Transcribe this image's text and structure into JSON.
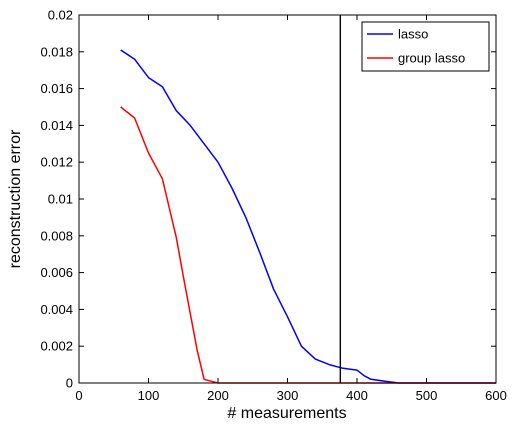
{
  "chart_data": {
    "type": "line",
    "xlabel": "# measurements",
    "ylabel": "reconstruction error",
    "xlim": [
      0,
      600
    ],
    "ylim": [
      0,
      0.02
    ],
    "xticks": [
      0,
      100,
      200,
      300,
      400,
      500,
      600
    ],
    "yticks": [
      0,
      0.002,
      0.004,
      0.006,
      0.008,
      0.01,
      0.012,
      0.014,
      0.016,
      0.018,
      0.02
    ],
    "xtick_labels": [
      "0",
      "100",
      "200",
      "300",
      "400",
      "500",
      "600"
    ],
    "ytick_labels": [
      "0",
      "0.002",
      "0.004",
      "0.006",
      "0.008",
      "0.01",
      "0.012",
      "0.014",
      "0.016",
      "0.018",
      "0.02"
    ],
    "grid": false,
    "legend_position": "top-right",
    "vline": {
      "x": 376,
      "color": "#000000"
    },
    "series": [
      {
        "name": "lasso",
        "color": "#0000ff",
        "x": [
          60,
          80,
          100,
          120,
          140,
          160,
          180,
          200,
          220,
          240,
          260,
          280,
          300,
          320,
          340,
          360,
          380,
          400,
          410,
          420,
          440,
          460,
          500,
          550,
          600
        ],
        "y": [
          0.0181,
          0.0176,
          0.0166,
          0.0161,
          0.0148,
          0.014,
          0.013,
          0.012,
          0.0106,
          0.009,
          0.0071,
          0.0051,
          0.0036,
          0.002,
          0.0013,
          0.001,
          0.0008,
          0.0007,
          0.0004,
          0.0002,
          0.0001,
          0.0,
          0.0,
          0.0,
          0.0
        ]
      },
      {
        "name": "group lasso",
        "color": "#ff0000",
        "x": [
          60,
          80,
          100,
          120,
          140,
          150,
          160,
          170,
          180,
          190,
          200,
          250,
          300,
          350,
          400,
          450,
          500,
          550,
          600
        ],
        "y": [
          0.015,
          0.0144,
          0.0125,
          0.0111,
          0.0079,
          0.0058,
          0.0038,
          0.0018,
          0.0002,
          0.0001,
          0.0,
          0.0,
          0.0,
          0.0,
          0.0,
          0.0,
          0.0,
          0.0,
          0.0
        ]
      }
    ]
  }
}
